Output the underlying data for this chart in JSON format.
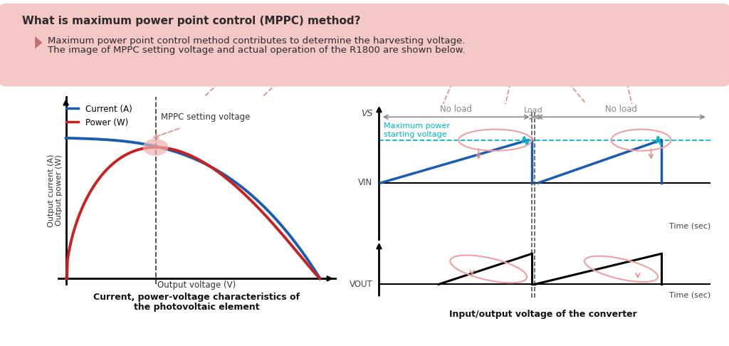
{
  "bg_color": "#ffffff",
  "header_bg": "#f5c8c8",
  "header_title": "What is maximum power point control (MPPC) method?",
  "header_text1": "Maximum power point control method contributes to determine the harvesting voltage.",
  "header_text2": "The image of MPPC setting voltage and actual operation of the R1800 are shown below.",
  "left_title_line1": "Current, power-voltage characteristics of",
  "left_title_line2": "the photovoltaic element",
  "right_title": "Input/output voltage of the converter",
  "left_ylabel": "Output current (A)\nOutput power (W)",
  "left_xlabel": "Output voltage (V)",
  "current_color": "#1a5cb0",
  "power_color": "#cc2020",
  "mppc_label": "MPPC setting voltage",
  "legend_current": "Current (A)",
  "legend_power": "Power (W)",
  "cyan_color": "#00b8c8",
  "vin_label": "VIN",
  "vout_label": "VOUT",
  "vs_label": "VS",
  "no_load_label": "No load",
  "load_label": "Load",
  "no_load_label2": "No load",
  "time_sec_label": "Time (sec)",
  "max_power_label": "Maximum power\nstarting voltage",
  "pink_ellipse_color": "#f0a0a0",
  "dashed_pink": "#e09090",
  "arrow_gray": "#888888"
}
